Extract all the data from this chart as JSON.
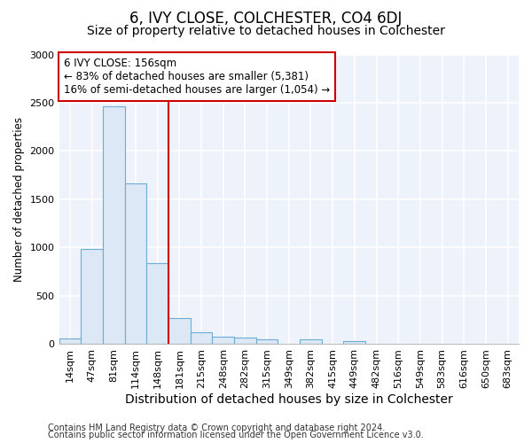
{
  "title": "6, IVY CLOSE, COLCHESTER, CO4 6DJ",
  "subtitle": "Size of property relative to detached houses in Colchester",
  "xlabel": "Distribution of detached houses by size in Colchester",
  "ylabel": "Number of detached properties",
  "bin_labels": [
    "14sqm",
    "47sqm",
    "81sqm",
    "114sqm",
    "148sqm",
    "181sqm",
    "215sqm",
    "248sqm",
    "282sqm",
    "315sqm",
    "349sqm",
    "382sqm",
    "415sqm",
    "449sqm",
    "482sqm",
    "516sqm",
    "549sqm",
    "583sqm",
    "616sqm",
    "650sqm",
    "683sqm"
  ],
  "bar_values": [
    55,
    980,
    2460,
    1660,
    840,
    270,
    120,
    70,
    60,
    50,
    0,
    45,
    0,
    30,
    0,
    0,
    0,
    0,
    0,
    0,
    0
  ],
  "bar_color": "#dce8f5",
  "bar_edge_color": "#6aaed6",
  "vline_position": 4.5,
  "vline_color": "#cc0000",
  "annotation_line1": "6 IVY CLOSE: 156sqm",
  "annotation_line2": "← 83% of detached houses are smaller (5,381)",
  "annotation_line3": "16% of semi-detached houses are larger (1,054) →",
  "annotation_box_color": "#ffffff",
  "annotation_box_edge": "#cc0000",
  "ylim": [
    0,
    3000
  ],
  "yticks": [
    0,
    500,
    1000,
    1500,
    2000,
    2500,
    3000
  ],
  "footer1": "Contains HM Land Registry data © Crown copyright and database right 2024.",
  "footer2": "Contains public sector information licensed under the Open Government Licence v3.0.",
  "bg_color": "#ffffff",
  "plot_bg_color": "#eef2fa",
  "grid_color": "#ffffff",
  "title_fontsize": 12,
  "subtitle_fontsize": 10,
  "xlabel_fontsize": 10,
  "ylabel_fontsize": 8.5,
  "tick_fontsize": 8,
  "footer_fontsize": 7
}
